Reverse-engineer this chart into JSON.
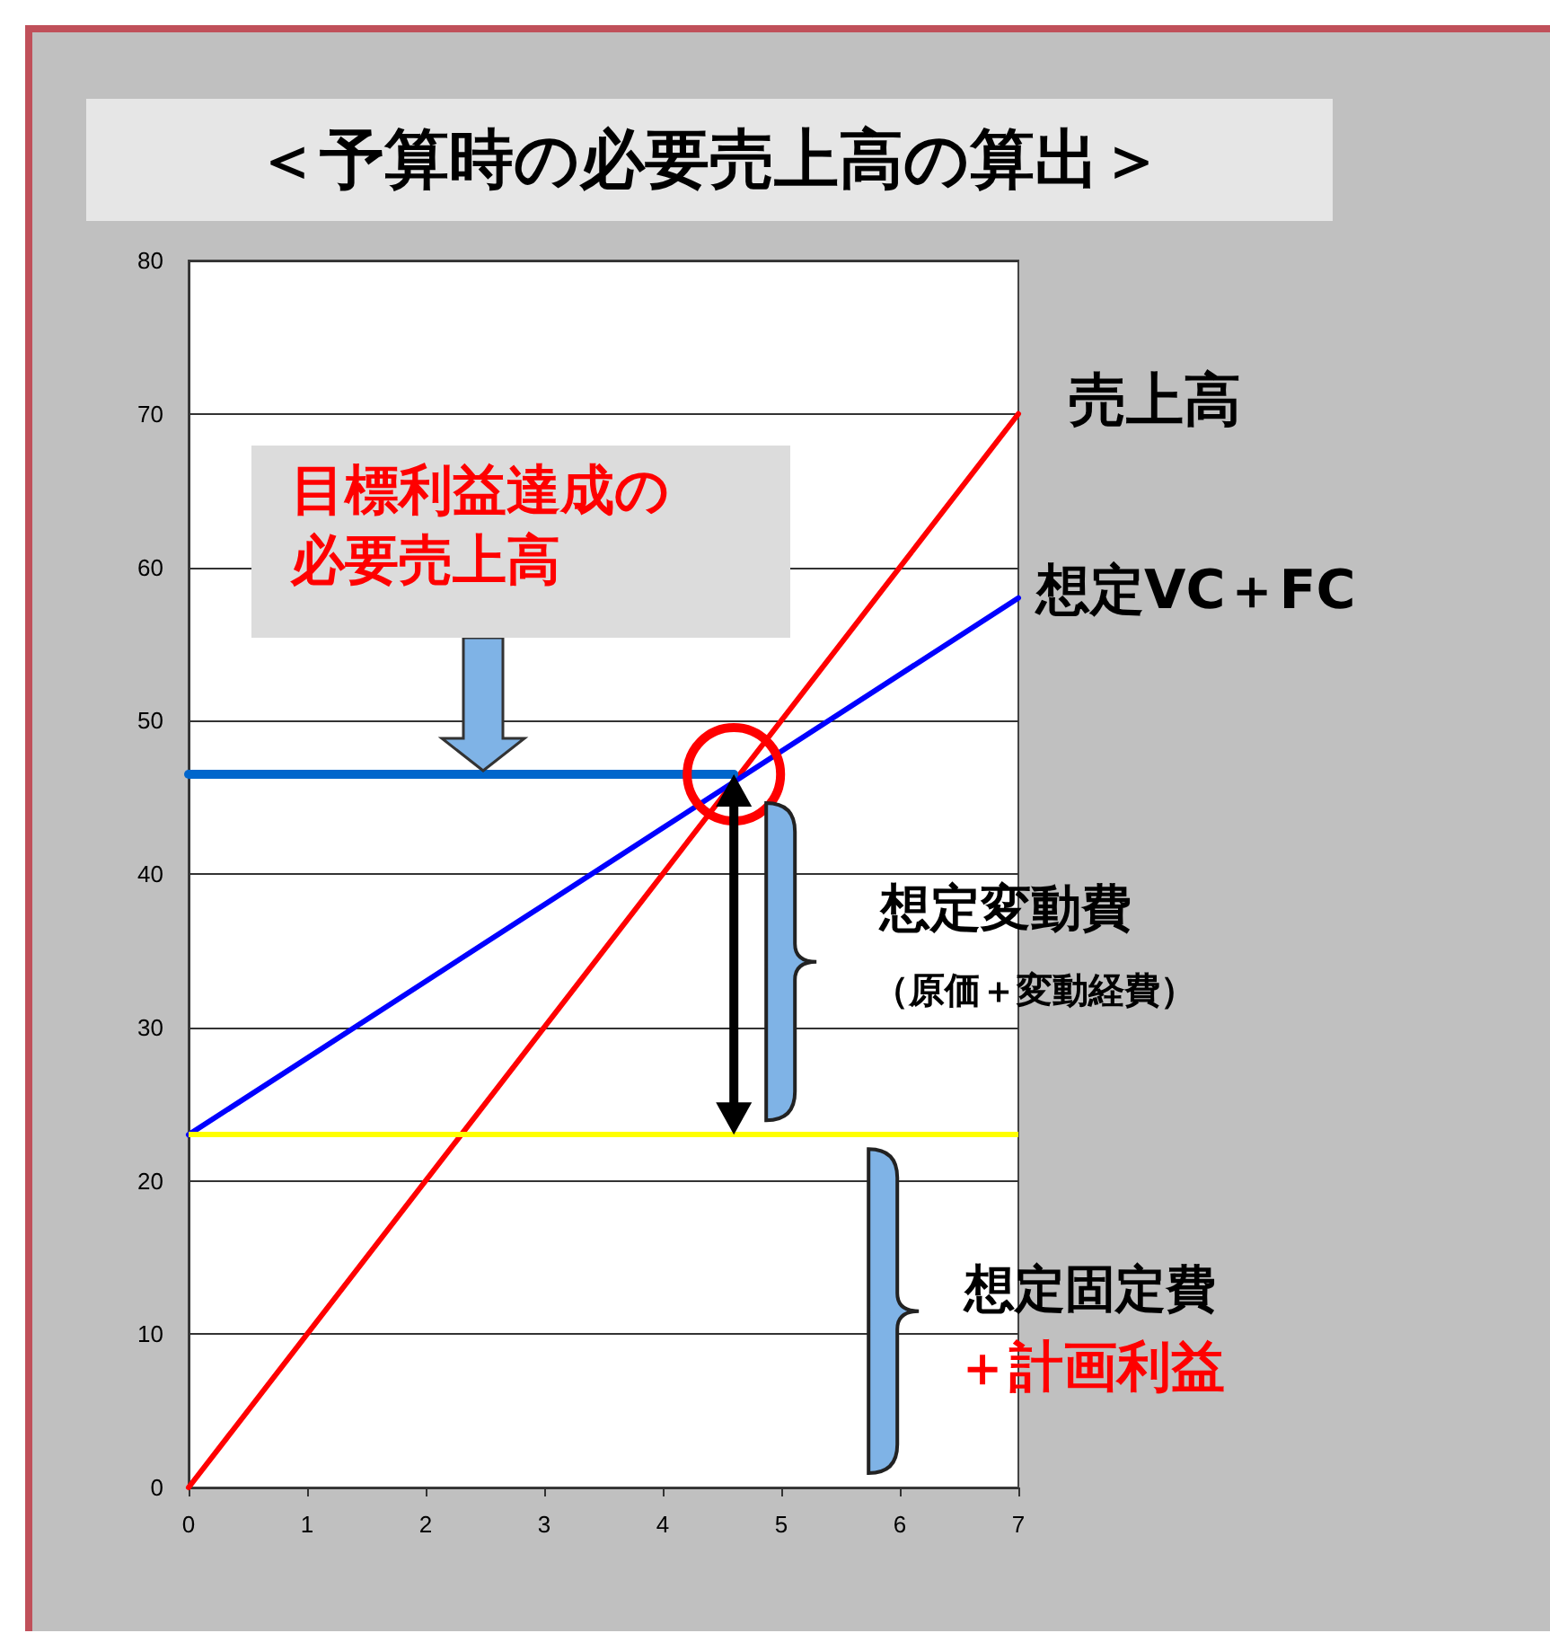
{
  "chart_data": {
    "type": "line",
    "title": "＜予算時の必要売上高の算出＞",
    "xlim": [
      0,
      7
    ],
    "xticks": [
      0,
      1,
      2,
      3,
      4,
      5,
      6,
      7
    ],
    "ylim": [
      0,
      80
    ],
    "yticks": [
      0,
      10,
      20,
      30,
      40,
      50,
      60,
      70,
      80
    ],
    "grid": "y",
    "legend": false,
    "marker": "none",
    "line_style": "solid",
    "series": [
      {
        "name": "売上高",
        "color": "#ff0000",
        "x": [
          0,
          7
        ],
        "values": [
          0,
          70
        ]
      },
      {
        "name": "想定VC＋FC",
        "color": "#0000ff",
        "x": [
          0,
          1,
          3,
          4,
          7
        ],
        "values": [
          23,
          28,
          38,
          43,
          58
        ]
      },
      {
        "color": "#0066cc",
        "x": [
          0,
          4.6
        ],
        "values": [
          46.5,
          46.5
        ]
      }
    ],
    "ref_lines": [
      {
        "axis": "y",
        "value": 23,
        "color": "#ffff00"
      }
    ],
    "annotations": [
      "目標利益達成の必要売上高",
      "想定変動費",
      "（原価＋変動経費）",
      "想定固定費",
      "＋計画利益"
    ]
  }
}
